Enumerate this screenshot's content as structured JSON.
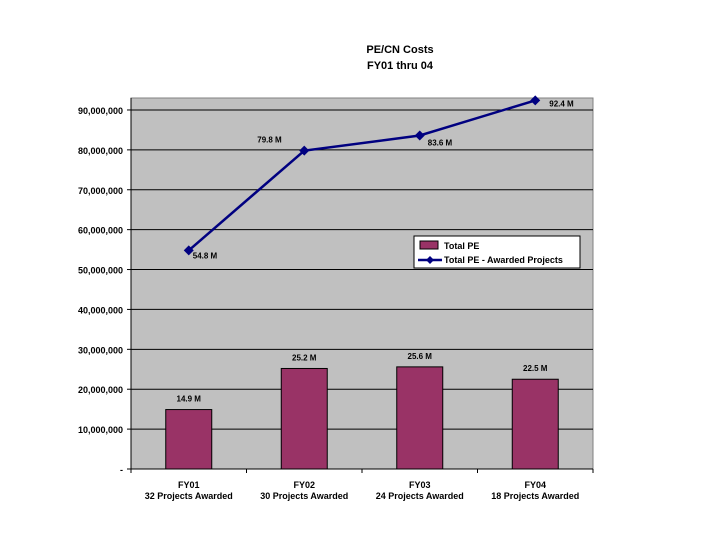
{
  "chart_data": {
    "type": "bar",
    "title": "PE/CN Costs",
    "subtitle": "FY01 thru 04",
    "categories": [
      "FY01",
      "FY02",
      "FY03",
      "FY04"
    ],
    "category_sublabels": [
      "32 Projects Awarded",
      "30 Projects Awarded",
      "24 Projects Awarded",
      "18 Projects Awarded"
    ],
    "ylim": [
      0,
      90000000
    ],
    "ytick_values": [
      0,
      10000000,
      20000000,
      30000000,
      40000000,
      50000000,
      60000000,
      70000000,
      80000000,
      90000000
    ],
    "ytick_labels": [
      "-",
      "10,000,000",
      "20,000,000",
      "30,000,000",
      "40,000,000",
      "50,000,000",
      "60,000,000",
      "70,000,000",
      "80,000,000",
      "90,000,000"
    ],
    "grid": true,
    "legend_position": "right-middle",
    "series": [
      {
        "name": "Total PE",
        "type": "bar",
        "color": "#993366",
        "values": [
          14900000,
          25200000,
          25600000,
          22500000
        ],
        "labels": [
          "14.9 M",
          "25.2 M",
          "25.6 M",
          "22.5 M"
        ]
      },
      {
        "name": "Total PE - Awarded Projects",
        "type": "line",
        "color": "#000080",
        "values": [
          54800000,
          79800000,
          83600000,
          92400000
        ],
        "labels": [
          "54.8 M",
          "79.8 M",
          "83.6 M",
          "92.4 M"
        ]
      }
    ]
  }
}
